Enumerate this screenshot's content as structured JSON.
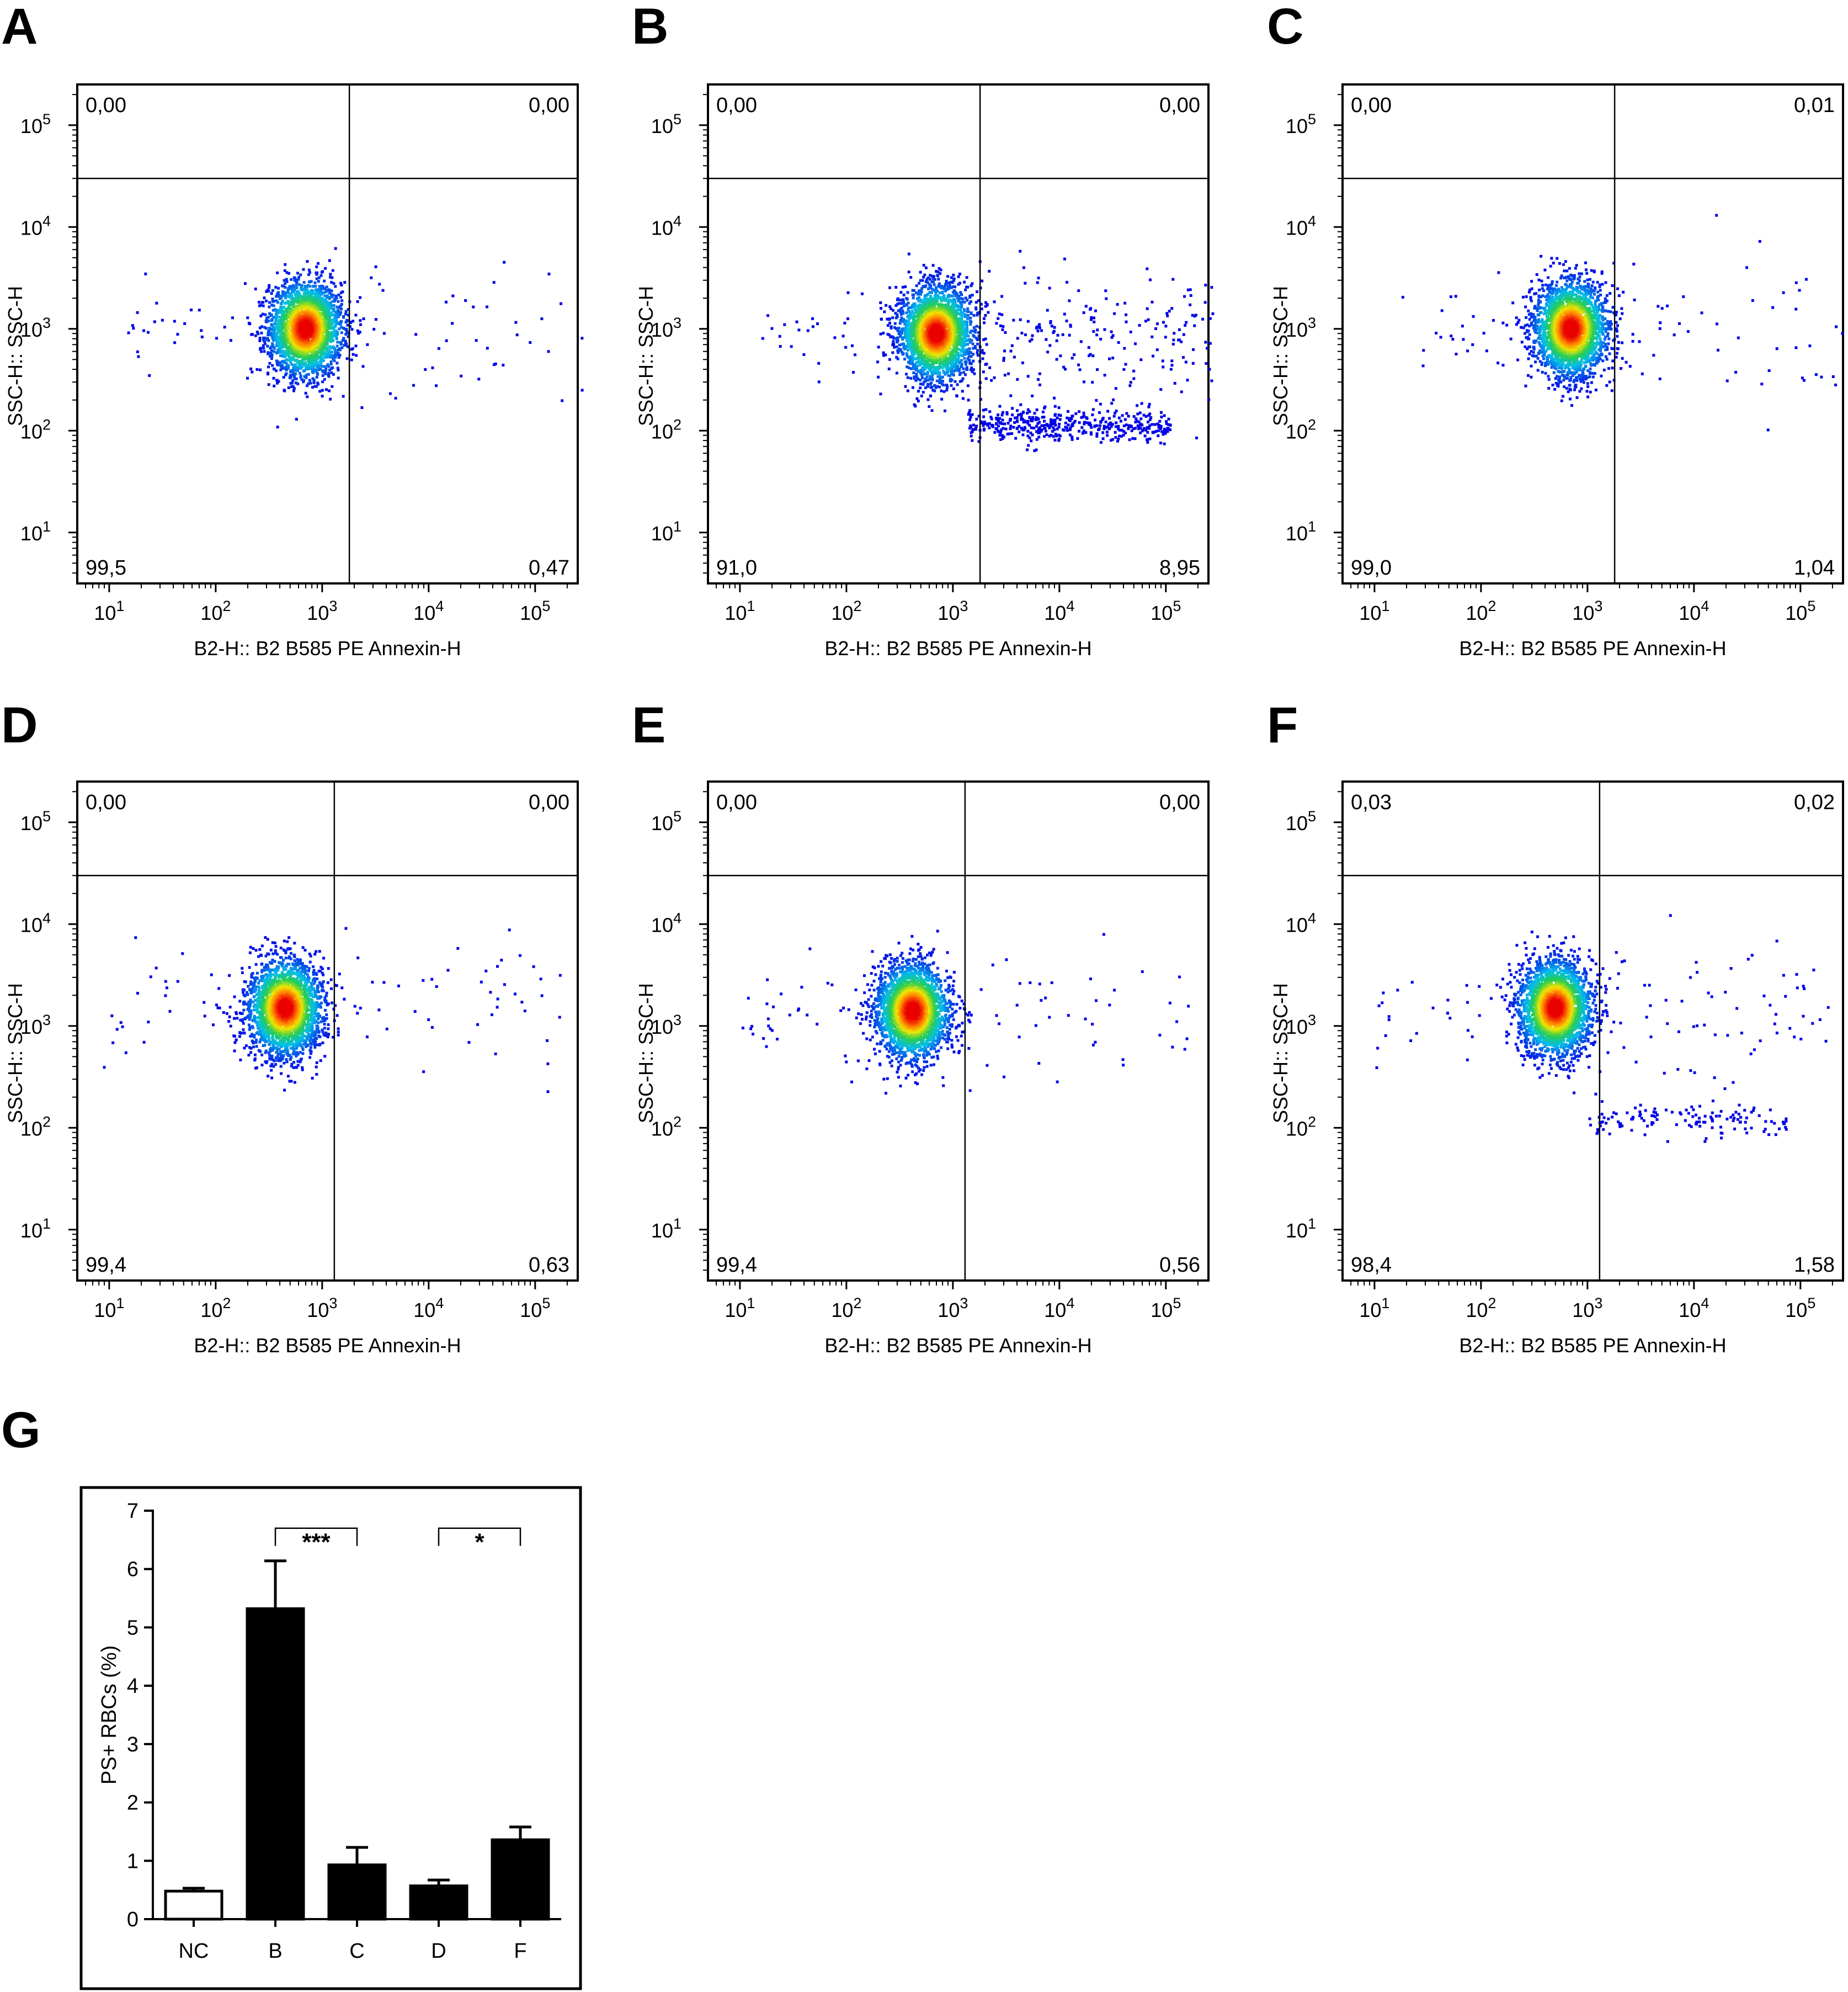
{
  "panel_letters": [
    "A",
    "B",
    "C",
    "D",
    "E",
    "F",
    "G"
  ],
  "chart_data": [
    {
      "panel": "A",
      "type": "scatter",
      "xlabel": "B2-H:: B2 B585 PE Annexin-H",
      "ylabel": "SSC-H:: SSC-H",
      "xscale": "log",
      "yscale": "log",
      "x_ticks": [
        "10^1",
        "10^2",
        "10^3",
        "10^4",
        "10^5"
      ],
      "y_ticks": [
        "10^1",
        "10^2",
        "10^3",
        "10^4",
        "10^5"
      ],
      "quadrants": {
        "upper_left": "0,00",
        "upper_right": "0,00",
        "lower_left": "99,5",
        "lower_right": "0,47"
      },
      "gate": {
        "x": 1800,
        "y": 30000
      },
      "population": {
        "main_center": [
          700,
          1000
        ],
        "tail": "sparse"
      }
    },
    {
      "panel": "B",
      "type": "scatter",
      "xlabel": "B2-H:: B2 B585 PE Annexin-H",
      "ylabel": "SSC-H:: SSC-H",
      "xscale": "log",
      "yscale": "log",
      "x_ticks": [
        "10^1",
        "10^2",
        "10^3",
        "10^4",
        "10^5"
      ],
      "y_ticks": [
        "10^1",
        "10^2",
        "10^3",
        "10^4",
        "10^5"
      ],
      "quadrants": {
        "upper_left": "0,00",
        "upper_right": "0,00",
        "lower_left": "91,0",
        "lower_right": "8,95"
      },
      "gate": {
        "x": 1800,
        "y": 30000
      },
      "population": {
        "main_center": [
          700,
          900
        ],
        "tail": "dense"
      }
    },
    {
      "panel": "C",
      "type": "scatter",
      "xlabel": "B2-H:: B2 B585 PE Annexin-H",
      "ylabel": "SSC-H:: SSC-H",
      "xscale": "log",
      "yscale": "log",
      "x_ticks": [
        "10^1",
        "10^2",
        "10^3",
        "10^4",
        "10^5"
      ],
      "y_ticks": [
        "10^1",
        "10^2",
        "10^3",
        "10^4",
        "10^5"
      ],
      "quadrants": {
        "upper_left": "0,00",
        "upper_right": "0,01",
        "lower_left": "99,0",
        "lower_right": "1,04"
      },
      "gate": {
        "x": 1800,
        "y": 30000
      },
      "population": {
        "main_center": [
          700,
          1000
        ],
        "tail": "sparse"
      }
    },
    {
      "panel": "D",
      "type": "scatter",
      "xlabel": "B2-H:: B2 B585 PE Annexin-H",
      "ylabel": "SSC-H:: SSC-H",
      "xscale": "log",
      "yscale": "log",
      "x_ticks": [
        "10^1",
        "10^2",
        "10^3",
        "10^4",
        "10^5"
      ],
      "y_ticks": [
        "10^1",
        "10^2",
        "10^3",
        "10^4",
        "10^5"
      ],
      "quadrants": {
        "upper_left": "0,00",
        "upper_right": "0,00",
        "lower_left": "99,4",
        "lower_right": "0,63"
      },
      "gate": {
        "x": 1300,
        "y": 30000
      },
      "population": {
        "main_center": [
          450,
          1500
        ],
        "tail": "sparse"
      }
    },
    {
      "panel": "E",
      "type": "scatter",
      "xlabel": "B2-H:: B2 B585 PE Annexin-H",
      "ylabel": "SSC-H:: SSC-H",
      "xscale": "log",
      "yscale": "log",
      "x_ticks": [
        "10^1",
        "10^2",
        "10^3",
        "10^4",
        "10^5"
      ],
      "y_ticks": [
        "10^1",
        "10^2",
        "10^3",
        "10^4",
        "10^5"
      ],
      "quadrants": {
        "upper_left": "0,00",
        "upper_right": "0,00",
        "lower_left": "99,4",
        "lower_right": "0,56"
      },
      "gate": {
        "x": 1300,
        "y": 30000
      },
      "population": {
        "main_center": [
          420,
          1400
        ],
        "tail": "sparse"
      }
    },
    {
      "panel": "F",
      "type": "scatter",
      "xlabel": "B2-H:: B2 B585 PE Annexin-H",
      "ylabel": "SSC-H:: SSC-H",
      "xscale": "log",
      "yscale": "log",
      "x_ticks": [
        "10^1",
        "10^2",
        "10^3",
        "10^4",
        "10^5"
      ],
      "y_ticks": [
        "10^1",
        "10^2",
        "10^3",
        "10^4",
        "10^5"
      ],
      "quadrants": {
        "upper_left": "0,03",
        "upper_right": "0,02",
        "lower_left": "98,4",
        "lower_right": "1,58"
      },
      "gate": {
        "x": 1300,
        "y": 30000
      },
      "population": {
        "main_center": [
          500,
          1500
        ],
        "tail": "medium"
      }
    },
    {
      "panel": "G",
      "type": "bar",
      "categories": [
        "NC",
        "B",
        "C",
        "D",
        "F"
      ],
      "values": [
        0.48,
        5.32,
        0.93,
        0.57,
        1.36
      ],
      "errors": [
        0.05,
        0.82,
        0.3,
        0.1,
        0.22
      ],
      "bar_colors": [
        "#ffffff",
        "#000000",
        "#000000",
        "#000000",
        "#000000"
      ],
      "ylabel": "PS+ RBCs (%)",
      "ylim": [
        0,
        7
      ],
      "y_ticks": [
        "0",
        "1",
        "2",
        "3",
        "4",
        "5",
        "6",
        "7"
      ],
      "significance": [
        {
          "from": "B",
          "to": "C",
          "label": "***"
        },
        {
          "from": "D",
          "to": "F",
          "label": "*"
        }
      ]
    }
  ]
}
